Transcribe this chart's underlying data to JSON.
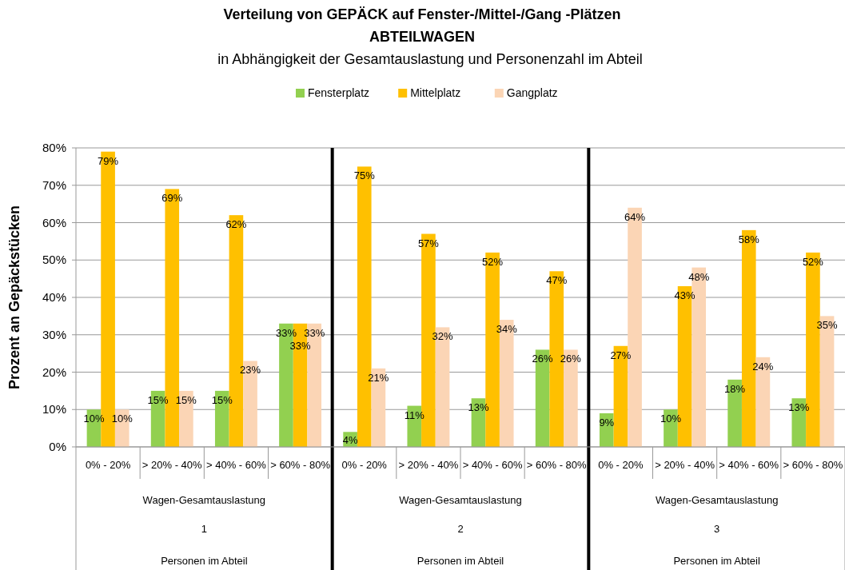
{
  "chart_data": {
    "type": "bar",
    "title": "Verteilung von GEPÄCK auf Fenster-/Mittel-/Gang -Plätzen",
    "subtitle": "ABTEILWAGEN",
    "annotations": [
      "in Abhängigkeit der Gesamtauslastung und Personenzahl im Abteil",
      "Wagen-Gesamtauslastung",
      "1",
      "Personen im Abteil",
      "Wagen-Gesamtauslastung",
      "2",
      "Personen im Abteil",
      "Wagen-Gesamtauslastung",
      "3",
      "Personen im Abteil"
    ],
    "ylabel": "Prozent an Gepäckstücken",
    "categories": [
      "0% - 20%",
      "> 20% - 40%",
      "> 40% - 60%",
      "> 60% - 80%",
      "0% - 20%",
      "> 20% - 40%",
      "> 40% - 60%",
      "> 60% - 80%",
      "0% - 20%",
      "> 20% - 40%",
      "> 40% - 60%",
      "> 60% - 80%"
    ],
    "series": [
      {
        "name": "Fensterplatz",
        "color": "#92d050",
        "values": [
          10,
          15,
          15,
          33,
          4,
          11,
          13,
          26,
          9,
          10,
          18,
          13
        ],
        "value_labels": [
          "10%",
          "15%",
          "15%",
          "33%",
          "4%",
          "11%",
          "13%",
          "26%",
          "9%",
          "10%",
          "18%",
          "13%"
        ]
      },
      {
        "name": "Mittelplatz",
        "color": "#ffc000",
        "values": [
          79,
          69,
          62,
          33,
          75,
          57,
          52,
          47,
          27,
          43,
          58,
          52
        ],
        "value_labels": [
          "79%",
          "69%",
          "62%",
          "33%",
          "75%",
          "57%",
          "52%",
          "47%",
          "27%",
          "43%",
          "58%",
          "52%"
        ]
      },
      {
        "name": "Gangplatz",
        "color": "#fbd5b5",
        "values": [
          10,
          15,
          23,
          33,
          21,
          32,
          34,
          26,
          64,
          48,
          24,
          35
        ],
        "value_labels": [
          "10%",
          "15%",
          "23%",
          "33%",
          "21%",
          "32%",
          "34%",
          "26%",
          "64%",
          "48%",
          "24%",
          "35%"
        ]
      }
    ],
    "ylim": [
      0,
      80
    ],
    "yticks": [
      {
        "value": 0,
        "label": "0%"
      },
      {
        "value": 10,
        "label": "10%"
      },
      {
        "value": 20,
        "label": "20%"
      },
      {
        "value": 30,
        "label": "30%"
      },
      {
        "value": 40,
        "label": "40%"
      },
      {
        "value": 50,
        "label": "50%"
      },
      {
        "value": 60,
        "label": "60%"
      },
      {
        "value": 70,
        "label": "70%"
      },
      {
        "value": 80,
        "label": "80%"
      }
    ],
    "grid": "y",
    "legend": "top"
  }
}
